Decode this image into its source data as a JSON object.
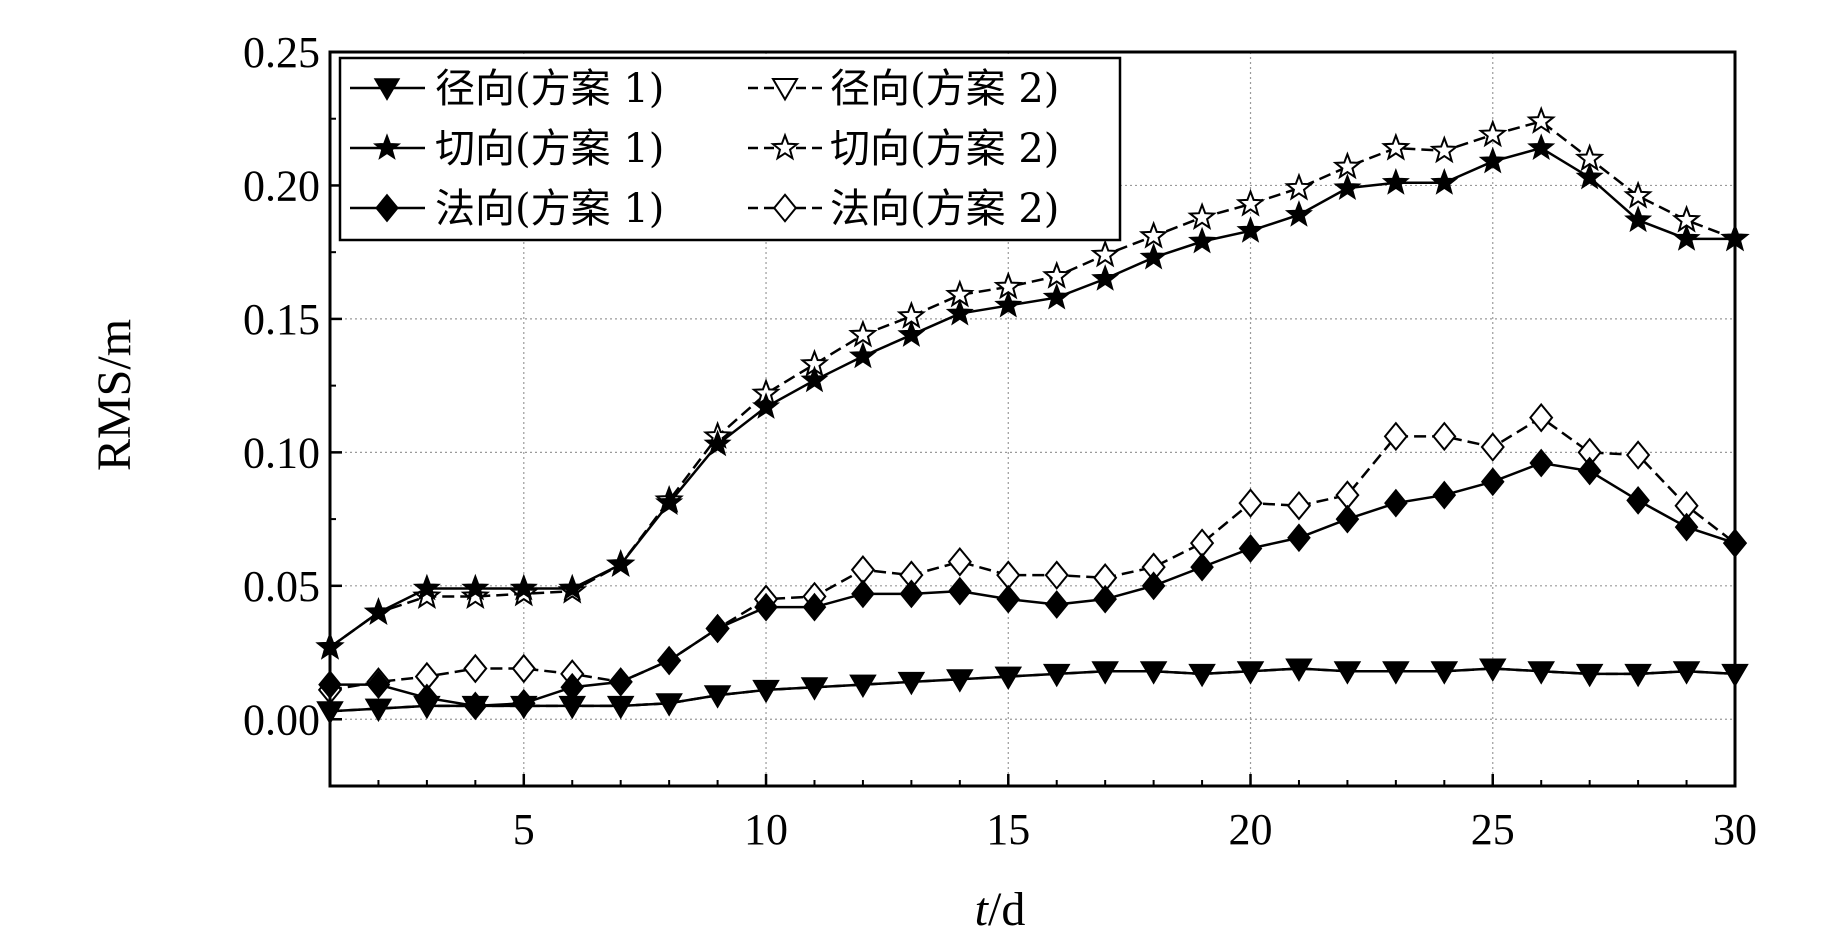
{
  "chart_data": {
    "type": "line",
    "xlabel_italic": "t",
    "xlabel_rest": "/d",
    "ylabel": "RMS/m",
    "xlim": [
      1,
      30
    ],
    "ylim": [
      -0.025,
      0.25
    ],
    "xticks": [
      5,
      10,
      15,
      20,
      25,
      30
    ],
    "yticks": [
      0.0,
      0.05,
      0.1,
      0.15,
      0.2,
      0.25
    ],
    "ytick_labels": [
      "0.00",
      "0.05",
      "0.10",
      "0.15",
      "0.20",
      "0.25"
    ],
    "grid": true,
    "legend_position": "top-left",
    "x": [
      1,
      2,
      3,
      4,
      5,
      6,
      7,
      8,
      9,
      10,
      11,
      12,
      13,
      14,
      15,
      16,
      17,
      18,
      19,
      20,
      21,
      22,
      23,
      24,
      25,
      26,
      27,
      28,
      29,
      30
    ],
    "series": [
      {
        "name": "径向(方案 1)",
        "marker": "triangle-down",
        "filled": true,
        "dashed": false,
        "values": [
          0.003,
          0.004,
          0.005,
          0.005,
          0.005,
          0.005,
          0.005,
          0.006,
          0.009,
          0.011,
          0.012,
          0.013,
          0.014,
          0.015,
          0.016,
          0.017,
          0.018,
          0.018,
          0.017,
          0.018,
          0.019,
          0.018,
          0.018,
          0.018,
          0.019,
          0.018,
          0.017,
          0.017,
          0.018,
          0.017
        ]
      },
      {
        "name": "径向(方案 2)",
        "marker": "triangle-down",
        "filled": false,
        "dashed": true,
        "values": [
          0.003,
          0.004,
          0.005,
          0.005,
          0.005,
          0.005,
          0.005,
          0.006,
          0.009,
          0.011,
          0.012,
          0.013,
          0.014,
          0.015,
          0.016,
          0.017,
          0.018,
          0.018,
          0.017,
          0.018,
          0.019,
          0.018,
          0.018,
          0.018,
          0.019,
          0.018,
          0.017,
          0.017,
          0.018,
          0.017
        ]
      },
      {
        "name": "切向(方案 1)",
        "marker": "star",
        "filled": true,
        "dashed": false,
        "values": [
          0.027,
          0.04,
          0.049,
          0.049,
          0.049,
          0.049,
          0.058,
          0.081,
          0.103,
          0.117,
          0.127,
          0.136,
          0.144,
          0.152,
          0.155,
          0.158,
          0.165,
          0.173,
          0.179,
          0.183,
          0.189,
          0.199,
          0.201,
          0.201,
          0.209,
          0.214,
          0.203,
          0.187,
          0.18,
          0.18
        ]
      },
      {
        "name": "切向(方案 2)",
        "marker": "star",
        "filled": false,
        "dashed": true,
        "values": [
          0.027,
          0.04,
          0.046,
          0.046,
          0.047,
          0.048,
          0.058,
          0.082,
          0.106,
          0.122,
          0.133,
          0.144,
          0.151,
          0.159,
          0.162,
          0.166,
          0.174,
          0.181,
          0.188,
          0.193,
          0.199,
          0.207,
          0.214,
          0.213,
          0.219,
          0.224,
          0.21,
          0.196,
          0.187,
          0.18
        ]
      },
      {
        "name": "法向(方案 1)",
        "marker": "diamond",
        "filled": true,
        "dashed": false,
        "values": [
          0.013,
          0.013,
          0.008,
          0.005,
          0.006,
          0.012,
          0.014,
          0.022,
          0.034,
          0.042,
          0.042,
          0.047,
          0.047,
          0.048,
          0.045,
          0.043,
          0.045,
          0.05,
          0.057,
          0.064,
          0.068,
          0.075,
          0.081,
          0.084,
          0.089,
          0.096,
          0.093,
          0.082,
          0.072,
          0.066
        ]
      },
      {
        "name": "法向(方案 2)",
        "marker": "diamond",
        "filled": false,
        "dashed": true,
        "values": [
          0.011,
          0.014,
          0.016,
          0.019,
          0.019,
          0.017,
          0.014,
          0.022,
          0.034,
          0.045,
          0.046,
          0.056,
          0.054,
          0.059,
          0.054,
          0.054,
          0.053,
          0.057,
          0.066,
          0.081,
          0.08,
          0.084,
          0.106,
          0.106,
          0.102,
          0.113,
          0.1,
          0.099,
          0.08,
          0.066
        ]
      }
    ],
    "legend": [
      {
        "label": "径向(方案 1)",
        "series": 0
      },
      {
        "label": "径向(方案 2)",
        "series": 1
      },
      {
        "label": "切向(方案 1)",
        "series": 2
      },
      {
        "label": "切向(方案 2)",
        "series": 3
      },
      {
        "label": "法向(方案 1)",
        "series": 4
      },
      {
        "label": "法向(方案 2)",
        "series": 5
      }
    ]
  }
}
